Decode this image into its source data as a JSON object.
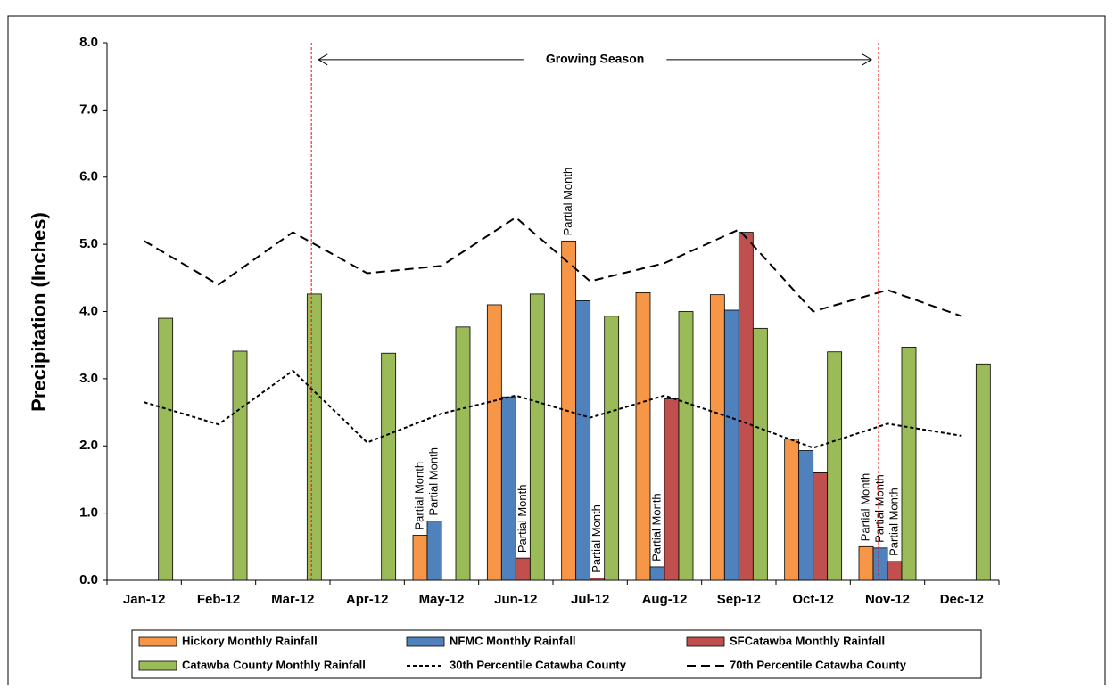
{
  "chart_data": {
    "type": "bar",
    "y_label": "Precipitation (Inches)",
    "categories": [
      "Jan-12",
      "Feb-12",
      "Mar-12",
      "Apr-12",
      "May-12",
      "Jun-12",
      "Jul-12",
      "Aug-12",
      "Sep-12",
      "Oct-12",
      "Nov-12",
      "Dec-12"
    ],
    "ylim": [
      0,
      8
    ],
    "yticks": [
      {
        "value": 0,
        "label": "0.0"
      },
      {
        "value": 1,
        "label": "1.0"
      },
      {
        "value": 2,
        "label": "2.0"
      },
      {
        "value": 3,
        "label": "3.0"
      },
      {
        "value": 4,
        "label": "4.0"
      },
      {
        "value": 5,
        "label": "5.0"
      },
      {
        "value": 6,
        "label": "6.0"
      },
      {
        "value": 7,
        "label": "7.0"
      },
      {
        "value": 8,
        "label": "8.0"
      }
    ],
    "series": [
      {
        "name": "Hickory Monthly  Rainfall",
        "kind": "bar",
        "color": "#f79646",
        "values": [
          null,
          null,
          null,
          null,
          0.67,
          4.1,
          5.05,
          4.28,
          4.25,
          2.1,
          0.5,
          null
        ],
        "notes": [
          null,
          null,
          null,
          null,
          "Partial Month",
          null,
          "Partial Month",
          null,
          null,
          null,
          "Partial Month",
          null
        ]
      },
      {
        "name": "NFMC Monthly  Rainfall",
        "kind": "bar",
        "color": "#4f81bd",
        "values": [
          null,
          null,
          null,
          null,
          0.88,
          2.73,
          4.16,
          0.2,
          4.02,
          1.93,
          0.48,
          null
        ],
        "notes": [
          null,
          null,
          null,
          null,
          "Partial Month",
          null,
          null,
          "Partial Month",
          null,
          null,
          "Partial Month",
          null
        ]
      },
      {
        "name": "SFCatawba Monthly  Rainfall",
        "kind": "bar",
        "color": "#c0504d",
        "values": [
          null,
          null,
          null,
          null,
          null,
          0.33,
          0.03,
          2.7,
          5.18,
          1.6,
          0.28,
          null
        ],
        "notes": [
          null,
          null,
          null,
          null,
          null,
          "Partial Month",
          "Partial Month",
          null,
          null,
          null,
          "Partial Month",
          null
        ]
      },
      {
        "name": "Catawba County Monthly  Rainfall",
        "kind": "bar",
        "color": "#9bbb59",
        "values": [
          3.9,
          3.41,
          4.26,
          3.38,
          3.77,
          4.26,
          3.93,
          4.0,
          3.75,
          3.4,
          3.47,
          3.22
        ]
      },
      {
        "name": "30th Percentile Catawba County",
        "kind": "line",
        "color": "#000000",
        "dash": "4 3",
        "values": [
          2.65,
          2.32,
          3.12,
          2.05,
          2.48,
          2.75,
          2.42,
          2.75,
          2.38,
          1.97,
          2.33,
          2.15
        ]
      },
      {
        "name": "70th Percentile Catawba County",
        "kind": "line",
        "color": "#000000",
        "dash": "10 6",
        "values": [
          5.05,
          4.4,
          5.18,
          4.57,
          4.68,
          5.4,
          4.45,
          4.72,
          5.22,
          4.0,
          4.32,
          3.93
        ]
      }
    ],
    "season_lines": [
      2.75,
      10.38
    ],
    "season_label": "Growing Season",
    "season_label_y": 7.75
  }
}
